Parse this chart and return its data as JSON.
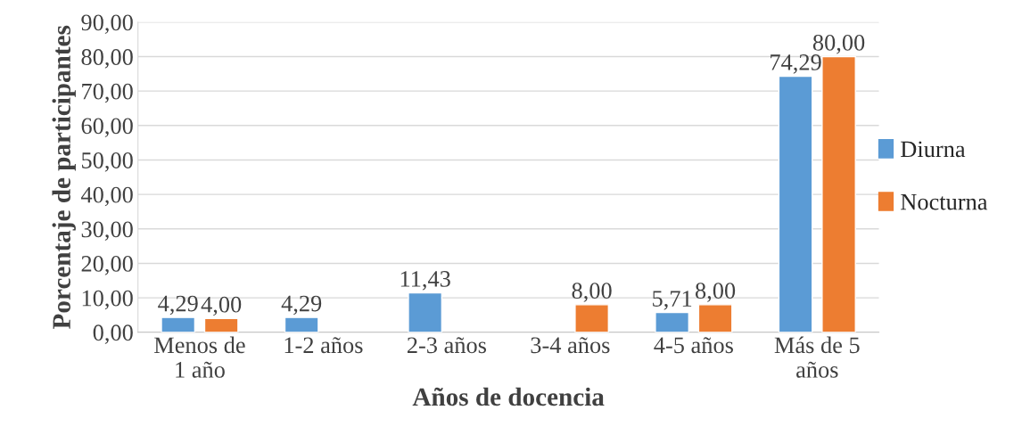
{
  "chart_data": {
    "type": "bar",
    "xlabel": "Años de docencia",
    "ylabel": "Porcentaje de participantes",
    "categories": [
      "Menos de\n1 año",
      "1-2 años",
      "2-3 años",
      "3-4 años",
      "4-5 años",
      "Más de 5\naños"
    ],
    "series": [
      {
        "name": "Diurna",
        "color": "#5b9bd5",
        "values": [
          4.29,
          4.29,
          11.43,
          null,
          5.71,
          74.29
        ],
        "value_labels": [
          "4,29",
          "4,29",
          "11,43",
          null,
          "5,71",
          "74,29"
        ]
      },
      {
        "name": "Nocturna",
        "color": "#ed7d31",
        "values": [
          4.0,
          null,
          null,
          8.0,
          8.0,
          80.0
        ],
        "value_labels": [
          "4,00",
          null,
          null,
          "8,00",
          "8,00",
          "80,00"
        ]
      }
    ],
    "ylim": [
      0,
      90
    ],
    "yticks": [
      {
        "value": 0,
        "label": "0,00"
      },
      {
        "value": 10,
        "label": "10,00"
      },
      {
        "value": 20,
        "label": "20,00"
      },
      {
        "value": 30,
        "label": "30,00"
      },
      {
        "value": 40,
        "label": "40,00"
      },
      {
        "value": 50,
        "label": "50,00"
      },
      {
        "value": 60,
        "label": "60,00"
      },
      {
        "value": 70,
        "label": "70,00"
      },
      {
        "value": 80,
        "label": "80,00"
      },
      {
        "value": 90,
        "label": "90,00"
      }
    ],
    "grid": "y",
    "legend": "right"
  }
}
